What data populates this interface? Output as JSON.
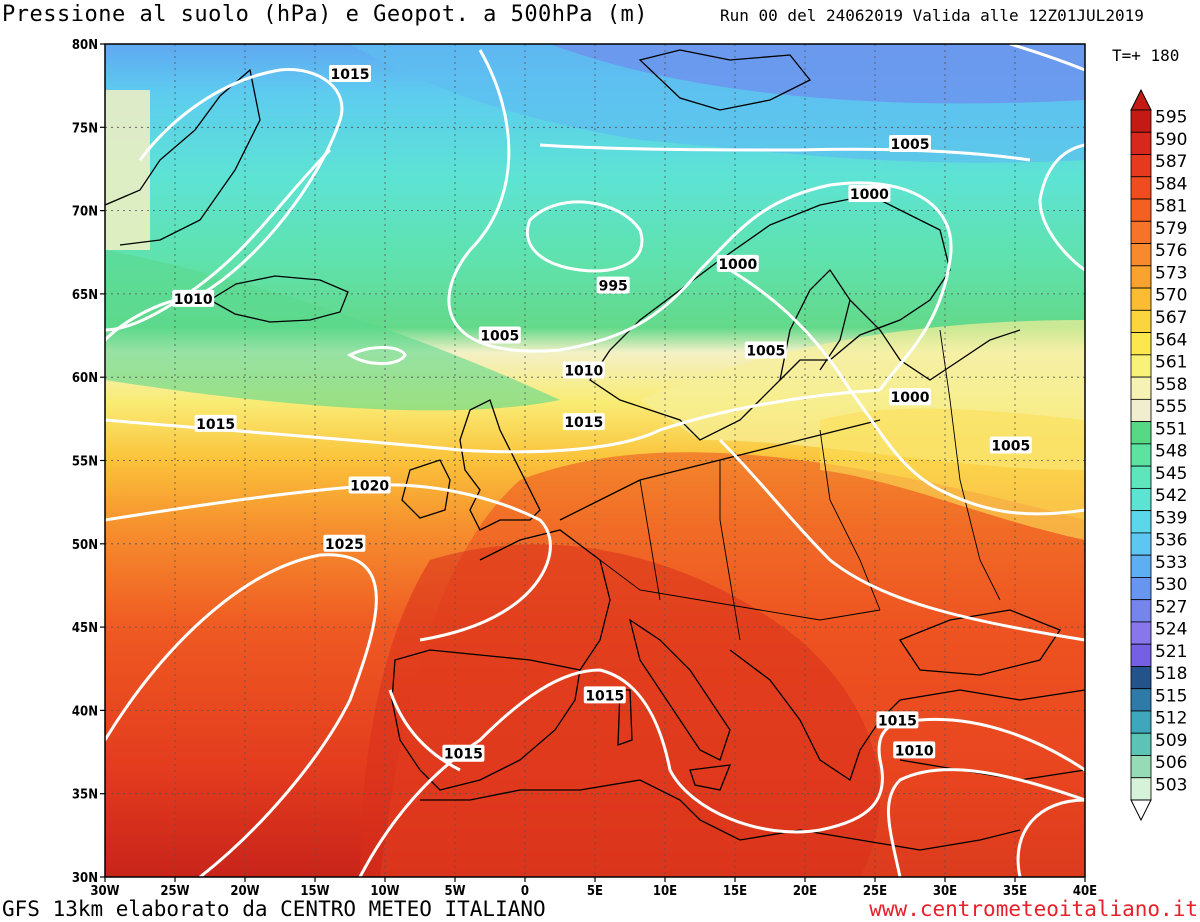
{
  "header": {
    "title": "Pressione al suolo (hPa) e Geopot. a 500hPa (m)",
    "run": "Run 00 del 24062019  Valida alle 12Z01JUL2019",
    "timestep": "T=+ 180"
  },
  "footer": {
    "left": "GFS 13km elaborato da CENTRO METEO ITALIANO",
    "right": "www.centrometeoitaliano.it"
  },
  "map": {
    "lon_range": [
      -30,
      40
    ],
    "lat_range": [
      30,
      80
    ],
    "lat_labels": [
      "30N",
      "35N",
      "40N",
      "45N",
      "50N",
      "55N",
      "60N",
      "65N",
      "70N",
      "75N",
      "80N"
    ],
    "lon_labels": [
      "30W",
      "25W",
      "20W",
      "15W",
      "10W",
      "5W",
      "0",
      "5E",
      "10E",
      "15E",
      "20E",
      "25E",
      "30E",
      "35E",
      "40E"
    ],
    "isobar_labels": [
      {
        "text": "1015",
        "lon": -12.5,
        "lat": 78.2
      },
      {
        "text": "1010",
        "lon": -23.7,
        "lat": 64.7
      },
      {
        "text": "1015",
        "lon": -22.1,
        "lat": 57.2
      },
      {
        "text": "1020",
        "lon": -11.1,
        "lat": 53.5
      },
      {
        "text": "1025",
        "lon": -12.9,
        "lat": 50.0
      },
      {
        "text": "995",
        "lon": 6.3,
        "lat": 65.5
      },
      {
        "text": "1005",
        "lon": -1.8,
        "lat": 62.5
      },
      {
        "text": "1010",
        "lon": 4.2,
        "lat": 60.4
      },
      {
        "text": "1015",
        "lon": 4.2,
        "lat": 57.3
      },
      {
        "text": "1000",
        "lon": 15.2,
        "lat": 66.8
      },
      {
        "text": "1005",
        "lon": 17.2,
        "lat": 61.6
      },
      {
        "text": "1000",
        "lon": 27.5,
        "lat": 58.8
      },
      {
        "text": "1005",
        "lon": 34.7,
        "lat": 55.9
      },
      {
        "text": "1000",
        "lon": 24.6,
        "lat": 71.0
      },
      {
        "text": "1005",
        "lon": 27.5,
        "lat": 74.0
      },
      {
        "text": "1015",
        "lon": 5.7,
        "lat": 40.9
      },
      {
        "text": "1015",
        "lon": -4.4,
        "lat": 37.4
      },
      {
        "text": "1015",
        "lon": 26.6,
        "lat": 39.4
      },
      {
        "text": "1010",
        "lon": 27.8,
        "lat": 37.6
      }
    ]
  },
  "colorbar": {
    "levels": [
      "595",
      "590",
      "587",
      "584",
      "581",
      "579",
      "576",
      "573",
      "570",
      "567",
      "564",
      "561",
      "558",
      "555",
      "551",
      "548",
      "545",
      "542",
      "539",
      "536",
      "533",
      "530",
      "527",
      "524",
      "521",
      "518",
      "515",
      "512",
      "509",
      "506",
      "503"
    ],
    "colors": [
      "#c41a14",
      "#d6291c",
      "#e63a1e",
      "#ef4d1f",
      "#f36022",
      "#f5742a",
      "#f78a2e",
      "#f9a22f",
      "#fbbb33",
      "#fcd43e",
      "#fce84e",
      "#f8f27a",
      "#f5f2b4",
      "#f1eecf",
      "#57d884",
      "#5de2a1",
      "#5fe5bb",
      "#5ce3d2",
      "#5cd7ea",
      "#5ec6f2",
      "#5eaef2",
      "#6696f0",
      "#7585ec",
      "#8777ea",
      "#7560e4",
      "#24528a",
      "#2e7aa8",
      "#3ea7bb",
      "#5dc3b5",
      "#95dbb6",
      "#d6f3d9"
    ]
  }
}
